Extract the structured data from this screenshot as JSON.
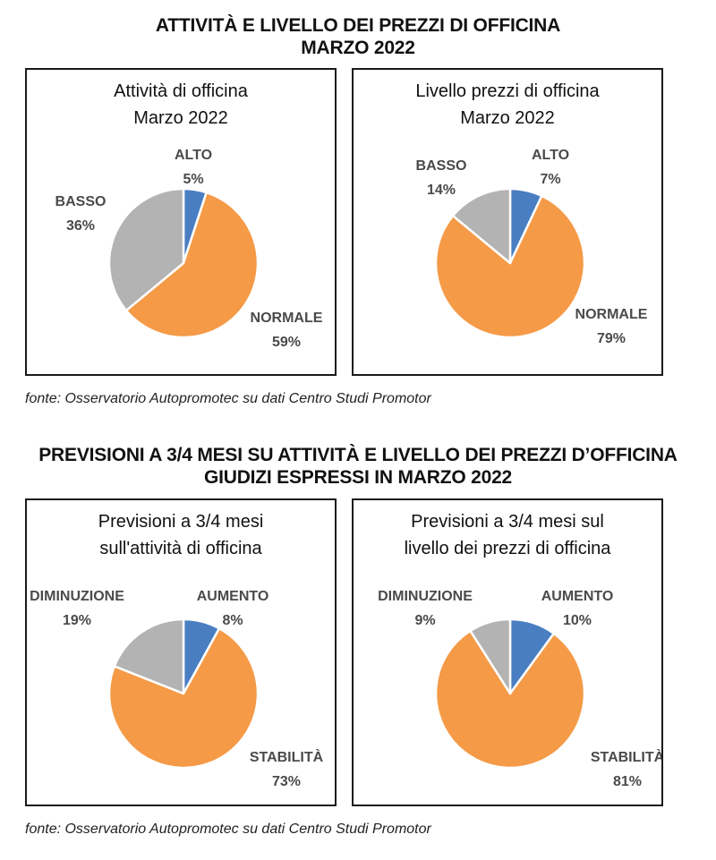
{
  "sections": [
    {
      "title_line1": "ATTIVITÀ E LIVELLO DEI PREZZI DI OFFICINA",
      "title_line2": "MARZO 2022",
      "source": "fonte: Osservatorio Autopromotec su dati Centro Studi Promotor"
    },
    {
      "title_line1": "PREVISIONI A 3/4 MESI SU ATTIVITÀ E LIVELLO DEI PREZZI D’OFFICINA",
      "title_line2": "GIUDIZI ESPRESSI IN MARZO 2022",
      "source": "fonte: Osservatorio Autopromotec su dati Centro Studi Promotor"
    }
  ],
  "colors": {
    "blue": "#4a7ec2",
    "orange": "#f59a47",
    "gray": "#b3b3b3"
  },
  "chart_data": [
    {
      "type": "pie",
      "title": [
        "Attività di officina",
        "Marzo 2022"
      ],
      "slices": [
        {
          "label": "ALTO",
          "value": 5,
          "display": "5%",
          "color": "#4a7ec2"
        },
        {
          "label": "NORMALE",
          "value": 59,
          "display": "59%",
          "color": "#f59a47"
        },
        {
          "label": "BASSO",
          "value": 36,
          "display": "36%",
          "color": "#b3b3b3"
        }
      ]
    },
    {
      "type": "pie",
      "title": [
        "Livello prezzi di officina",
        "Marzo 2022"
      ],
      "slices": [
        {
          "label": "ALTO",
          "value": 7,
          "display": "7%",
          "color": "#4a7ec2"
        },
        {
          "label": "NORMALE",
          "value": 79,
          "display": "79%",
          "color": "#f59a47"
        },
        {
          "label": "BASSO",
          "value": 14,
          "display": "14%",
          "color": "#b3b3b3"
        }
      ]
    },
    {
      "type": "pie",
      "title": [
        "Previsioni a 3/4 mesi",
        "sull'attività di officina"
      ],
      "slices": [
        {
          "label": "AUMENTO",
          "value": 8,
          "display": "8%",
          "color": "#4a7ec2"
        },
        {
          "label": "STABILITÀ",
          "value": 73,
          "display": "73%",
          "color": "#f59a47"
        },
        {
          "label": "DIMINUZIONE",
          "value": 19,
          "display": "19%",
          "color": "#b3b3b3"
        }
      ]
    },
    {
      "type": "pie",
      "title": [
        "Previsioni a 3/4 mesi sul",
        "livello dei prezzi di officina"
      ],
      "slices": [
        {
          "label": "AUMENTO",
          "value": 10,
          "display": "10%",
          "color": "#4a7ec2"
        },
        {
          "label": "STABILITÀ",
          "value": 81,
          "display": "81%",
          "color": "#f59a47"
        },
        {
          "label": "DIMINUZIONE",
          "value": 9,
          "display": "9%",
          "color": "#b3b3b3"
        }
      ]
    }
  ]
}
